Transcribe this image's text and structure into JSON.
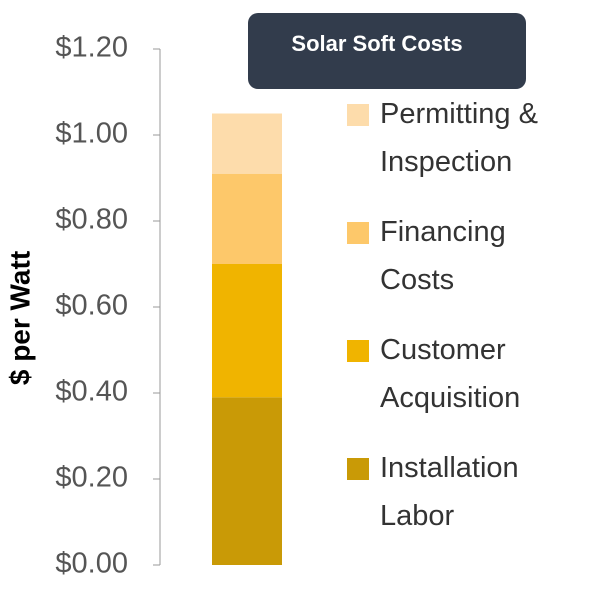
{
  "chart_data": {
    "type": "stacked_bar",
    "title": "Solar Soft Costs",
    "y_label": "$ per Watt",
    "categories": [
      null
    ],
    "series": [
      {
        "name": "Installation Labor",
        "color": "#c99a06",
        "values": [
          0.39
        ]
      },
      {
        "name": "Customer Acquisition",
        "color": "#f0b400",
        "values": [
          0.31
        ]
      },
      {
        "name": "Financing Costs",
        "color": "#fdc86a",
        "values": [
          0.21
        ]
      },
      {
        "name": "Permitting & Inspection",
        "color": "#fddcab",
        "values": [
          0.14
        ]
      }
    ],
    "ylim": [
      0,
      1.2
    ],
    "yticks": [
      {
        "value": 0,
        "label": "$0.00"
      },
      {
        "value": 0.2,
        "label": "$0.20"
      },
      {
        "value": 0.4,
        "label": "$0.40"
      },
      {
        "value": 0.6,
        "label": "$0.60"
      },
      {
        "value": 0.8,
        "label": "$0.80"
      },
      {
        "value": 1.0,
        "label": "$1.00"
      },
      {
        "value": 1.2,
        "label": "$1.20"
      }
    ],
    "grid": false
  }
}
